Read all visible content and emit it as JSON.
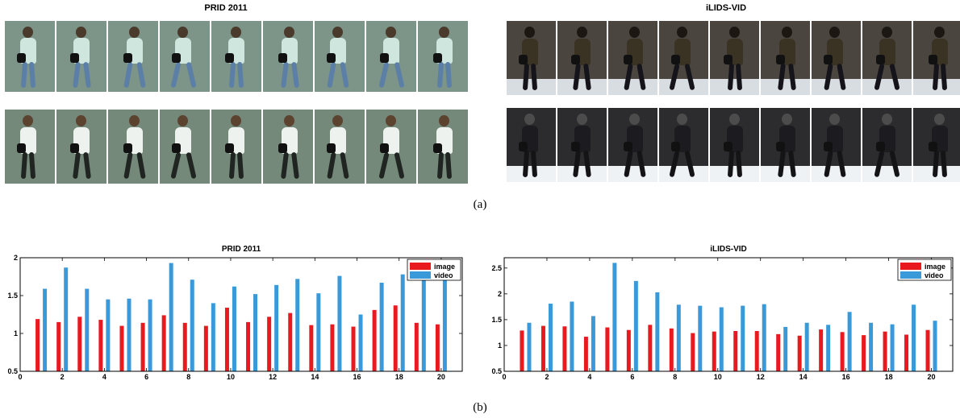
{
  "panel_a": {
    "left_title": "PRID 2011",
    "right_title": "iLIDS-VID",
    "caption": "(a)",
    "left_rows": 2,
    "right_rows": 2,
    "frames_per_row": 9
  },
  "panel_b_caption": "(b)",
  "colors": {
    "image": "#e8191f",
    "video": "#3a9ad9"
  },
  "chart_data": [
    {
      "type": "bar",
      "title": "PRID 2011",
      "xlabel": "",
      "ylabel": "",
      "categories": [
        1,
        2,
        3,
        4,
        5,
        6,
        7,
        8,
        9,
        10,
        11,
        12,
        13,
        14,
        15,
        16,
        17,
        18,
        19,
        20
      ],
      "series": [
        {
          "name": "image",
          "values": [
            1.19,
            1.15,
            1.22,
            1.18,
            1.1,
            1.14,
            1.24,
            1.14,
            1.1,
            1.34,
            1.15,
            1.22,
            1.27,
            1.11,
            1.12,
            1.09,
            1.31,
            1.37,
            1.14,
            1.12
          ]
        },
        {
          "name": "video",
          "values": [
            1.59,
            1.87,
            1.59,
            1.45,
            1.46,
            1.45,
            1.93,
            1.71,
            1.4,
            1.62,
            1.52,
            1.64,
            1.72,
            1.53,
            1.76,
            1.25,
            1.67,
            1.78,
            1.83,
            1.8
          ]
        }
      ],
      "ylim": [
        0.5,
        2
      ],
      "xlim": [
        0,
        21
      ],
      "xticks": [
        "0",
        "2",
        "4",
        "6",
        "8",
        "10",
        "12",
        "14",
        "16",
        "18",
        "20"
      ],
      "yticks": [
        "0.5",
        "1",
        "1.5",
        "2"
      ],
      "legend": "top-right"
    },
    {
      "type": "bar",
      "title": "iLIDS-VID",
      "xlabel": "",
      "ylabel": "",
      "categories": [
        1,
        2,
        3,
        4,
        5,
        6,
        7,
        8,
        9,
        10,
        11,
        12,
        13,
        14,
        15,
        16,
        17,
        18,
        19,
        20
      ],
      "series": [
        {
          "name": "image",
          "values": [
            1.29,
            1.38,
            1.37,
            1.17,
            1.35,
            1.3,
            1.4,
            1.33,
            1.24,
            1.27,
            1.28,
            1.28,
            1.22,
            1.19,
            1.31,
            1.26,
            1.2,
            1.27,
            1.21,
            1.3
          ]
        },
        {
          "name": "video",
          "values": [
            1.44,
            1.81,
            1.85,
            1.57,
            2.6,
            2.25,
            2.03,
            1.79,
            1.77,
            1.74,
            1.77,
            1.8,
            1.36,
            1.44,
            1.4,
            1.65,
            1.44,
            1.41,
            1.79,
            1.48
          ]
        }
      ],
      "ylim": [
        0.5,
        2.7
      ],
      "xlim": [
        0,
        21
      ],
      "xticks": [
        "0",
        "2",
        "4",
        "6",
        "8",
        "10",
        "12",
        "14",
        "16",
        "18",
        "20"
      ],
      "yticks": [
        "0.5",
        "1",
        "1.5",
        "2",
        "2.5"
      ],
      "legend": "top-right"
    }
  ]
}
